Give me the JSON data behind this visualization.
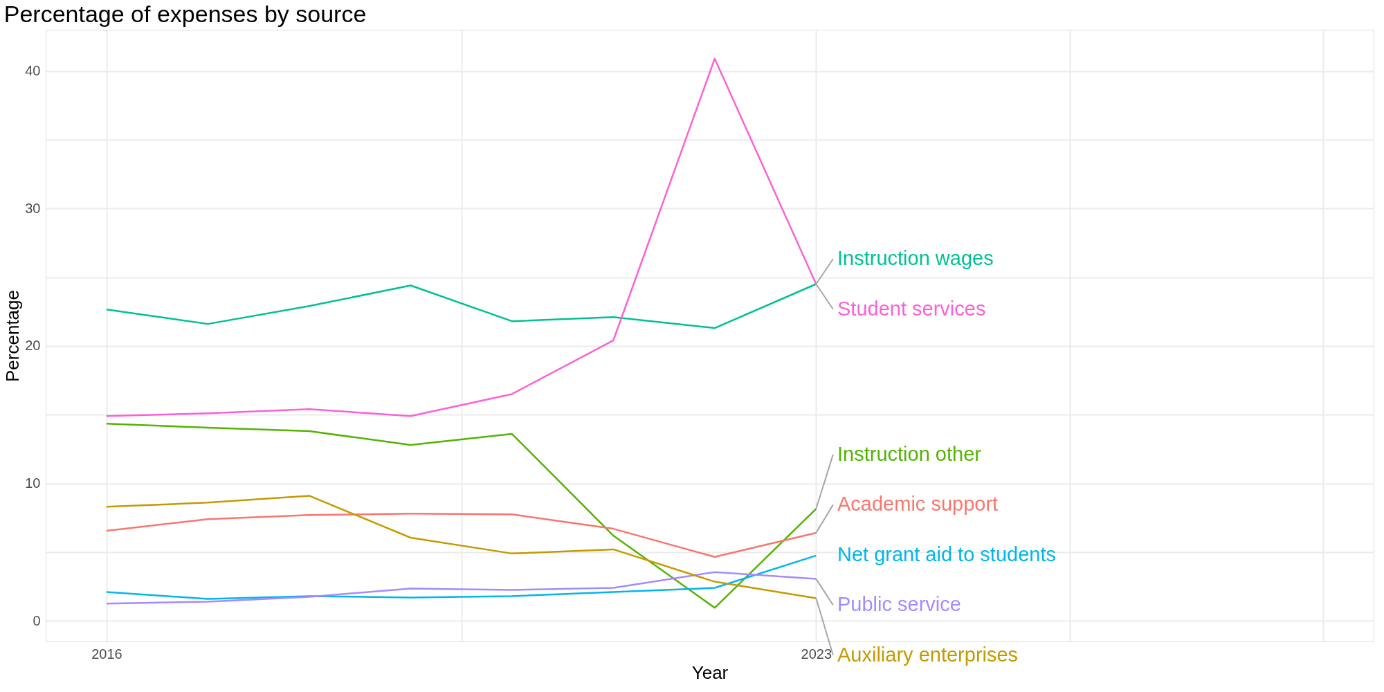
{
  "chart_data": {
    "type": "line",
    "title": "Percentage of expenses by source",
    "xlabel": "Year",
    "ylabel": "Percentage",
    "x": [
      2016,
      2017,
      2018,
      2019,
      2020,
      2021,
      2022,
      2023
    ],
    "xlim": [
      2015.4,
      2028.5
    ],
    "xticks": [
      2016,
      {
        "value": 2019.5,
        "label": null
      },
      2023,
      {
        "value": 2025.5,
        "label": null
      },
      {
        "value": 2028,
        "label": null
      }
    ],
    "ylim": [
      -1.5,
      43
    ],
    "yticks": [
      0,
      {
        "value": 5,
        "label": null
      },
      10,
      {
        "value": 15,
        "label": null
      },
      20,
      {
        "value": 25,
        "label": null
      },
      30,
      {
        "value": 35,
        "label": null
      },
      40
    ],
    "grid": true,
    "legend": false,
    "marker": "none",
    "line_style": "solid",
    "series": [
      {
        "name": "Instruction wages",
        "color": "#00C094",
        "values": [
          22.65,
          21.6,
          22.9,
          24.4,
          21.8,
          22.1,
          21.3,
          24.5
        ]
      },
      {
        "name": "Student services",
        "color": "#FB61D7",
        "values": [
          14.9,
          15.1,
          15.4,
          14.9,
          16.5,
          20.4,
          40.9,
          24.5
        ]
      },
      {
        "name": "Instruction other",
        "color": "#53B400",
        "values": [
          14.35,
          14.05,
          13.8,
          12.8,
          13.6,
          6.2,
          0.95,
          8.15
        ]
      },
      {
        "name": "Academic support",
        "color": "#F8766D",
        "values": [
          6.55,
          7.4,
          7.7,
          7.8,
          7.75,
          6.7,
          4.65,
          6.4
        ]
      },
      {
        "name": "Net grant aid to students",
        "color": "#00B6EB",
        "values": [
          2.1,
          1.6,
          1.8,
          1.7,
          1.8,
          2.1,
          2.4,
          4.75
        ]
      },
      {
        "name": "Public service",
        "color": "#A58AFF",
        "values": [
          1.25,
          1.4,
          1.75,
          2.35,
          2.25,
          2.4,
          3.55,
          3.05
        ]
      },
      {
        "name": "Auxiliary enterprises",
        "color": "#C49A00",
        "values": [
          8.3,
          8.6,
          9.1,
          6.05,
          4.9,
          5.2,
          2.85,
          1.65
        ]
      }
    ]
  }
}
